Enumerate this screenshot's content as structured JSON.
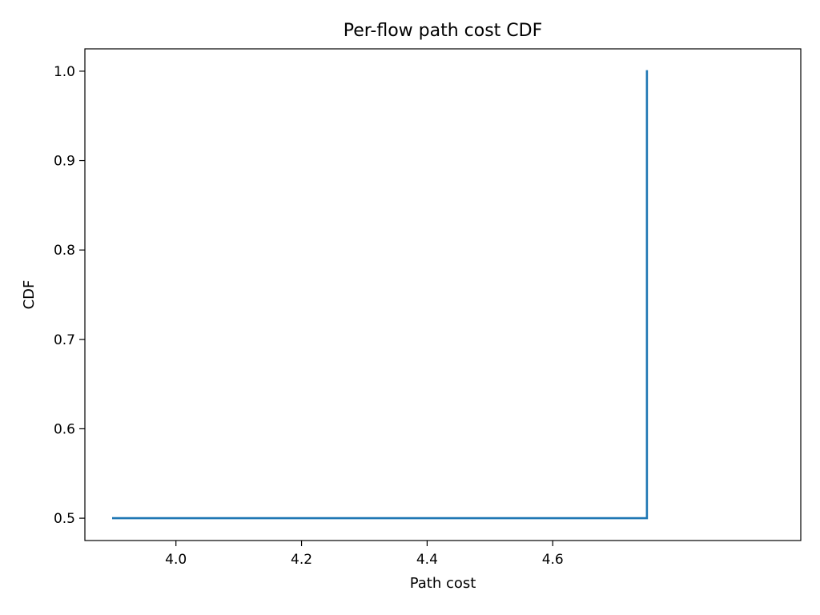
{
  "chart_data": {
    "type": "line",
    "title": "Per-flow path cost CDF",
    "xlabel": "Path cost",
    "ylabel": "CDF",
    "xlim": [
      3.855,
      4.995
    ],
    "ylim": [
      0.475,
      1.025
    ],
    "xticks": [
      4.0,
      4.2,
      4.4,
      4.6
    ],
    "xtick_labels": [
      "4.0",
      "4.2",
      "4.4",
      "4.6"
    ],
    "yticks": [
      0.5,
      0.6,
      0.7,
      0.8,
      0.9,
      1.0
    ],
    "ytick_labels": [
      "0.5",
      "0.6",
      "0.7",
      "0.8",
      "0.9",
      "1.0"
    ],
    "grid": false,
    "series": [
      {
        "color": "#1f77b4",
        "x": [
          3.9,
          4.75,
          4.75
        ],
        "y": [
          0.5,
          0.5,
          1.0
        ]
      }
    ]
  }
}
